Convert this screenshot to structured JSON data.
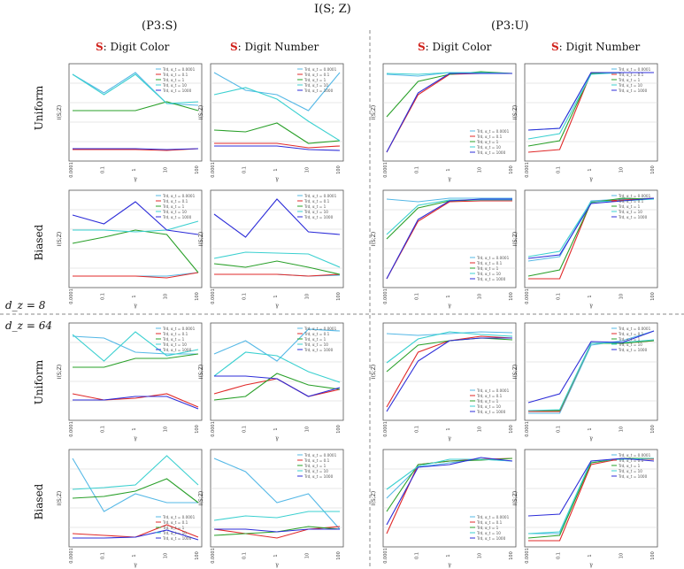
{
  "figure": {
    "title": "I(S; Z)",
    "group_left": "(P3:S)",
    "group_right": "(P3:U)",
    "col_headers": [
      {
        "s": "S",
        "rest": ": Digit Color"
      },
      {
        "s": "S",
        "rest": ": Digit Number"
      },
      {
        "s": "S",
        "rest": ": Digit Color"
      },
      {
        "s": "S",
        "rest": ": Digit Number"
      }
    ],
    "rows": [
      "Uniform",
      "Biased",
      "Uniform",
      "Biased"
    ],
    "dz8": "d_z = 8",
    "dz64": "d_z = 64",
    "ylabel": "I(S;Z)",
    "xlabel": "γ",
    "xticks": [
      "0.0001",
      "0.1",
      "1",
      "10",
      "100"
    ]
  },
  "legend_labels": [
    "Trd, α_t = 0.0001",
    "Trd, α_t = 0.1",
    "Trd, α_t = 1",
    "Trd, α_t = 10",
    "Trd, α_t = 1000"
  ],
  "colors": {
    "c1000_lightblue": "#55b8e6",
    "c01_red": "#e02a2a",
    "c1_green": "#2aa02a",
    "c10_cyan": "#3bd0d0",
    "c100_blue": "#2c2cd8"
  },
  "chart_data": [
    {
      "type": "line",
      "title": "Uniform / Digit Color (P3:S, d_z=8)",
      "x": [
        "0.0001",
        "0.1",
        "1",
        "10",
        "100"
      ],
      "series": [
        {
          "name": "Trd, α_t = 0.0001",
          "values": [
            0.93,
            0.72,
            0.95,
            0.6,
            0.58
          ]
        },
        {
          "name": "Trd, α_t = 0.1",
          "values": [
            0.08,
            0.08,
            0.08,
            0.07,
            0.09
          ]
        },
        {
          "name": "Trd, α_t = 1",
          "values": [
            0.52,
            0.52,
            0.52,
            0.62,
            0.52
          ]
        },
        {
          "name": "Trd, α_t = 10",
          "values": [
            0.93,
            0.7,
            0.93,
            0.6,
            0.62
          ]
        },
        {
          "name": "Trd, α_t = 1000",
          "values": [
            0.09,
            0.09,
            0.09,
            0.08,
            0.09
          ]
        }
      ]
    },
    {
      "type": "line",
      "title": "Uniform / Digit Number (P3:S, d_z=8)",
      "x": [
        "0.0001",
        "0.1",
        "1",
        "10",
        "100"
      ],
      "series": [
        {
          "name": "Trd, α_t = 0.0001",
          "values": [
            0.95,
            0.75,
            0.7,
            0.52,
            0.95
          ]
        },
        {
          "name": "Trd, α_t = 0.1",
          "values": [
            0.15,
            0.15,
            0.15,
            0.1,
            0.12
          ]
        },
        {
          "name": "Trd, α_t = 1",
          "values": [
            0.3,
            0.28,
            0.38,
            0.15,
            0.18
          ]
        },
        {
          "name": "Trd, α_t = 10",
          "values": [
            0.7,
            0.78,
            0.65,
            0.4,
            0.18
          ]
        },
        {
          "name": "Trd, α_t = 1000",
          "values": [
            0.12,
            0.12,
            0.12,
            0.08,
            0.07
          ]
        }
      ]
    },
    {
      "type": "line",
      "title": "Uniform / Digit Color (P3:U, d_z=8)",
      "x": [
        "0.0001",
        "0.1",
        "1",
        "10",
        "100"
      ],
      "series": [
        {
          "name": "Trd, α_t = 0.0001",
          "values": [
            0.93,
            0.91,
            0.95,
            0.94,
            0.94
          ]
        },
        {
          "name": "Trd, α_t = 0.1",
          "values": [
            0.05,
            0.7,
            0.93,
            0.94,
            0.94
          ]
        },
        {
          "name": "Trd, α_t = 1",
          "values": [
            0.45,
            0.85,
            0.93,
            0.96,
            0.94
          ]
        },
        {
          "name": "Trd, α_t = 10",
          "values": [
            0.94,
            0.93,
            0.95,
            0.95,
            0.94
          ]
        },
        {
          "name": "Trd, α_t = 1000",
          "values": [
            0.05,
            0.72,
            0.94,
            0.94,
            0.94
          ]
        }
      ]
    },
    {
      "type": "line",
      "title": "Uniform / Digit Number (P3:U, d_z=8)",
      "x": [
        "0.0001",
        "0.1",
        "1",
        "10",
        "100"
      ],
      "series": [
        {
          "name": "Trd, α_t = 0.0001",
          "values": [
            0.3,
            0.32,
            0.95,
            0.95,
            0.95
          ]
        },
        {
          "name": "Trd, α_t = 0.1",
          "values": [
            0.05,
            0.08,
            0.95,
            0.95,
            0.95
          ]
        },
        {
          "name": "Trd, α_t = 1",
          "values": [
            0.12,
            0.18,
            0.94,
            0.95,
            0.95
          ]
        },
        {
          "name": "Trd, α_t = 10",
          "values": [
            0.2,
            0.26,
            0.93,
            0.95,
            0.95
          ]
        },
        {
          "name": "Trd, α_t = 1000",
          "values": [
            0.3,
            0.32,
            0.95,
            0.95,
            0.95
          ]
        }
      ]
    },
    {
      "type": "line",
      "title": "Biased / Digit Color (P3:S, d_z=8)",
      "x": [
        "0.0001",
        "0.1",
        "1",
        "10",
        "100"
      ],
      "series": [
        {
          "name": "Trd, α_t = 0.0001",
          "values": [
            0.08,
            0.08,
            0.08,
            0.08,
            0.12
          ]
        },
        {
          "name": "Trd, α_t = 0.1",
          "values": [
            0.08,
            0.08,
            0.08,
            0.06,
            0.12
          ]
        },
        {
          "name": "Trd, α_t = 1",
          "values": [
            0.45,
            0.52,
            0.6,
            0.55,
            0.12
          ]
        },
        {
          "name": "Trd, α_t = 10",
          "values": [
            0.6,
            0.6,
            0.58,
            0.6,
            0.7
          ]
        },
        {
          "name": "Trd, α_t = 1000",
          "values": [
            0.77,
            0.67,
            0.92,
            0.6,
            0.55
          ]
        }
      ]
    },
    {
      "type": "line",
      "title": "Biased / Digit Number (P3:S, d_z=8)",
      "x": [
        "0.0001",
        "0.1",
        "1",
        "10",
        "100"
      ],
      "series": [
        {
          "name": "Trd, α_t = 0.0001",
          "values": [
            0.1,
            0.1,
            0.1,
            0.08,
            0.09
          ]
        },
        {
          "name": "Trd, α_t = 0.1",
          "values": [
            0.1,
            0.1,
            0.1,
            0.08,
            0.1
          ]
        },
        {
          "name": "Trd, α_t = 1",
          "values": [
            0.22,
            0.18,
            0.25,
            0.18,
            0.1
          ]
        },
        {
          "name": "Trd, α_t = 10",
          "values": [
            0.28,
            0.35,
            0.34,
            0.33,
            0.18
          ]
        },
        {
          "name": "Trd, α_t = 1000",
          "values": [
            0.78,
            0.52,
            0.95,
            0.58,
            0.55
          ]
        }
      ]
    },
    {
      "type": "line",
      "title": "Biased / Digit Color (P3:U, d_z=8)",
      "x": [
        "0.0001",
        "0.1",
        "1",
        "10",
        "100"
      ],
      "series": [
        {
          "name": "Trd, α_t = 0.0001",
          "values": [
            0.95,
            0.92,
            0.96,
            0.96,
            0.96
          ]
        },
        {
          "name": "Trd, α_t = 0.1",
          "values": [
            0.05,
            0.7,
            0.92,
            0.93,
            0.93
          ]
        },
        {
          "name": "Trd, α_t = 1",
          "values": [
            0.5,
            0.85,
            0.93,
            0.94,
            0.94
          ]
        },
        {
          "name": "Trd, α_t = 10",
          "values": [
            0.55,
            0.88,
            0.94,
            0.94,
            0.94
          ]
        },
        {
          "name": "Trd, α_t = 1000",
          "values": [
            0.05,
            0.72,
            0.93,
            0.95,
            0.95
          ]
        }
      ]
    },
    {
      "type": "line",
      "title": "Biased / Digit Number (P3:U, d_z=8)",
      "x": [
        "0.0001",
        "0.1",
        "1",
        "10",
        "100"
      ],
      "series": [
        {
          "name": "Trd, α_t = 0.0001",
          "values": [
            0.25,
            0.3,
            0.93,
            0.95,
            0.96
          ]
        },
        {
          "name": "Trd, α_t = 0.1",
          "values": [
            0.05,
            0.05,
            0.92,
            0.94,
            0.96
          ]
        },
        {
          "name": "Trd, α_t = 1",
          "values": [
            0.08,
            0.15,
            0.91,
            0.96,
            0.95
          ]
        },
        {
          "name": "Trd, α_t = 10",
          "values": [
            0.3,
            0.36,
            0.92,
            0.93,
            0.95
          ]
        },
        {
          "name": "Trd, α_t = 1000",
          "values": [
            0.28,
            0.32,
            0.9,
            0.93,
            0.96
          ]
        }
      ]
    },
    {
      "type": "line",
      "title": "Uniform / Digit Color (P3:S, d_z=64)",
      "x": [
        "0.0001",
        "0.1",
        "1",
        "10",
        "100"
      ],
      "series": [
        {
          "name": "Trd, α_t = 0.0001",
          "values": [
            0.9,
            0.88,
            0.72,
            0.7,
            0.7
          ]
        },
        {
          "name": "Trd, α_t = 0.1",
          "values": [
            0.25,
            0.18,
            0.2,
            0.25,
            0.1
          ]
        },
        {
          "name": "Trd, α_t = 1",
          "values": [
            0.55,
            0.55,
            0.65,
            0.65,
            0.7
          ]
        },
        {
          "name": "Trd, α_t = 10",
          "values": [
            0.92,
            0.62,
            0.95,
            0.68,
            0.75
          ]
        },
        {
          "name": "Trd, α_t = 1000",
          "values": [
            0.18,
            0.18,
            0.22,
            0.22,
            0.08
          ]
        }
      ]
    },
    {
      "type": "line",
      "title": "Uniform / Digit Number (P3:S, d_z=64)",
      "x": [
        "0.0001",
        "0.1",
        "1",
        "10",
        "100"
      ],
      "series": [
        {
          "name": "Trd, α_t = 0.0001",
          "values": [
            0.7,
            0.85,
            0.62,
            0.98,
            0.96
          ]
        },
        {
          "name": "Trd, α_t = 0.1",
          "values": [
            0.25,
            0.35,
            0.42,
            0.22,
            0.3
          ]
        },
        {
          "name": "Trd, α_t = 1",
          "values": [
            0.18,
            0.22,
            0.48,
            0.35,
            0.3
          ]
        },
        {
          "name": "Trd, α_t = 10",
          "values": [
            0.45,
            0.72,
            0.68,
            0.5,
            0.38
          ]
        },
        {
          "name": "Trd, α_t = 1000",
          "values": [
            0.45,
            0.45,
            0.42,
            0.22,
            0.32
          ]
        }
      ]
    },
    {
      "type": "line",
      "title": "Uniform / Digit Color (P3:U, d_z=64)",
      "x": [
        "0.0001",
        "0.1",
        "1",
        "10",
        "100"
      ],
      "series": [
        {
          "name": "Trd, α_t = 0.0001",
          "values": [
            0.93,
            0.91,
            0.93,
            0.95,
            0.94
          ]
        },
        {
          "name": "Trd, α_t = 0.1",
          "values": [
            0.1,
            0.72,
            0.85,
            0.9,
            0.88
          ]
        },
        {
          "name": "Trd, α_t = 1",
          "values": [
            0.5,
            0.8,
            0.85,
            0.88,
            0.86
          ]
        },
        {
          "name": "Trd, α_t = 10",
          "values": [
            0.6,
            0.87,
            0.95,
            0.92,
            0.9
          ]
        },
        {
          "name": "Trd, α_t = 1000",
          "values": [
            0.05,
            0.62,
            0.85,
            0.88,
            0.88
          ]
        }
      ]
    },
    {
      "type": "line",
      "title": "Uniform / Digit Number (P3:U, d_z=64)",
      "x": [
        "0.0001",
        "0.1",
        "1",
        "10",
        "100"
      ],
      "series": [
        {
          "name": "Trd, α_t = 0.0001",
          "values": [
            0.03,
            0.03,
            0.8,
            0.85,
            0.96
          ]
        },
        {
          "name": "Trd, α_t = 0.1",
          "values": [
            0.05,
            0.05,
            0.82,
            0.82,
            0.85
          ]
        },
        {
          "name": "Trd, α_t = 1",
          "values": [
            0.06,
            0.06,
            0.82,
            0.82,
            0.85
          ]
        },
        {
          "name": "Trd, α_t = 10",
          "values": [
            0.06,
            0.07,
            0.82,
            0.83,
            0.86
          ]
        },
        {
          "name": "Trd, α_t = 1000",
          "values": [
            0.15,
            0.25,
            0.84,
            0.83,
            0.96
          ]
        }
      ]
    },
    {
      "type": "line",
      "title": "Biased / Digit Color (P3:S, d_z=64)",
      "x": [
        "0.0001",
        "0.1",
        "1",
        "10",
        "100"
      ],
      "series": [
        {
          "name": "Trd, α_t = 0.0001",
          "values": [
            0.95,
            0.35,
            0.55,
            0.45,
            0.45
          ]
        },
        {
          "name": "Trd, α_t = 0.1",
          "values": [
            0.1,
            0.08,
            0.06,
            0.2,
            0.06
          ]
        },
        {
          "name": "Trd, α_t = 1",
          "values": [
            0.5,
            0.52,
            0.58,
            0.72,
            0.45
          ]
        },
        {
          "name": "Trd, α_t = 10",
          "values": [
            0.6,
            0.62,
            0.65,
            0.98,
            0.65
          ]
        },
        {
          "name": "Trd, α_t = 1000",
          "values": [
            0.05,
            0.05,
            0.06,
            0.14,
            0.03
          ]
        }
      ]
    },
    {
      "type": "line",
      "title": "Biased / Digit Number (P3:S, d_z=64)",
      "x": [
        "0.0001",
        "0.1",
        "1",
        "10",
        "100"
      ],
      "series": [
        {
          "name": "Trd, α_t = 0.0001",
          "values": [
            0.95,
            0.8,
            0.45,
            0.55,
            0.15
          ]
        },
        {
          "name": "Trd, α_t = 0.1",
          "values": [
            0.15,
            0.1,
            0.05,
            0.15,
            0.18
          ]
        },
        {
          "name": "Trd, α_t = 1",
          "values": [
            0.08,
            0.1,
            0.12,
            0.18,
            0.15
          ]
        },
        {
          "name": "Trd, α_t = 10",
          "values": [
            0.25,
            0.3,
            0.28,
            0.35,
            0.35
          ]
        },
        {
          "name": "Trd, α_t = 1000",
          "values": [
            0.15,
            0.15,
            0.12,
            0.15,
            0.15
          ]
        }
      ]
    },
    {
      "type": "line",
      "title": "Biased / Digit Color (P3:U, d_z=64)",
      "x": [
        "0.0001",
        "0.1",
        "1",
        "10",
        "100"
      ],
      "series": [
        {
          "name": "Trd, α_t = 0.0001",
          "values": [
            0.5,
            0.85,
            0.9,
            0.94,
            0.92
          ]
        },
        {
          "name": "Trd, α_t = 0.1",
          "values": [
            0.1,
            0.88,
            0.92,
            0.94,
            0.95
          ]
        },
        {
          "name": "Trd, α_t = 1",
          "values": [
            0.35,
            0.88,
            0.92,
            0.93,
            0.95
          ]
        },
        {
          "name": "Trd, α_t = 10",
          "values": [
            0.6,
            0.86,
            0.94,
            0.94,
            0.92
          ]
        },
        {
          "name": "Trd, α_t = 1000",
          "values": [
            0.2,
            0.85,
            0.88,
            0.96,
            0.92
          ]
        }
      ]
    },
    {
      "type": "line",
      "title": "Biased / Digit Number (P3:U, d_z=64)",
      "x": [
        "0.0001",
        "0.1",
        "1",
        "10",
        "100"
      ],
      "series": [
        {
          "name": "Trd, α_t = 0.0001",
          "values": [
            0.1,
            0.1,
            0.9,
            0.95,
            0.94
          ]
        },
        {
          "name": "Trd, α_t = 0.1",
          "values": [
            0.02,
            0.02,
            0.88,
            0.95,
            0.94
          ]
        },
        {
          "name": "Trd, α_t = 1",
          "values": [
            0.05,
            0.08,
            0.9,
            0.95,
            0.95
          ]
        },
        {
          "name": "Trd, α_t = 10",
          "values": [
            0.1,
            0.12,
            0.92,
            0.94,
            0.95
          ]
        },
        {
          "name": "Trd, α_t = 1000",
          "values": [
            0.3,
            0.32,
            0.92,
            0.95,
            0.92
          ]
        }
      ]
    }
  ]
}
